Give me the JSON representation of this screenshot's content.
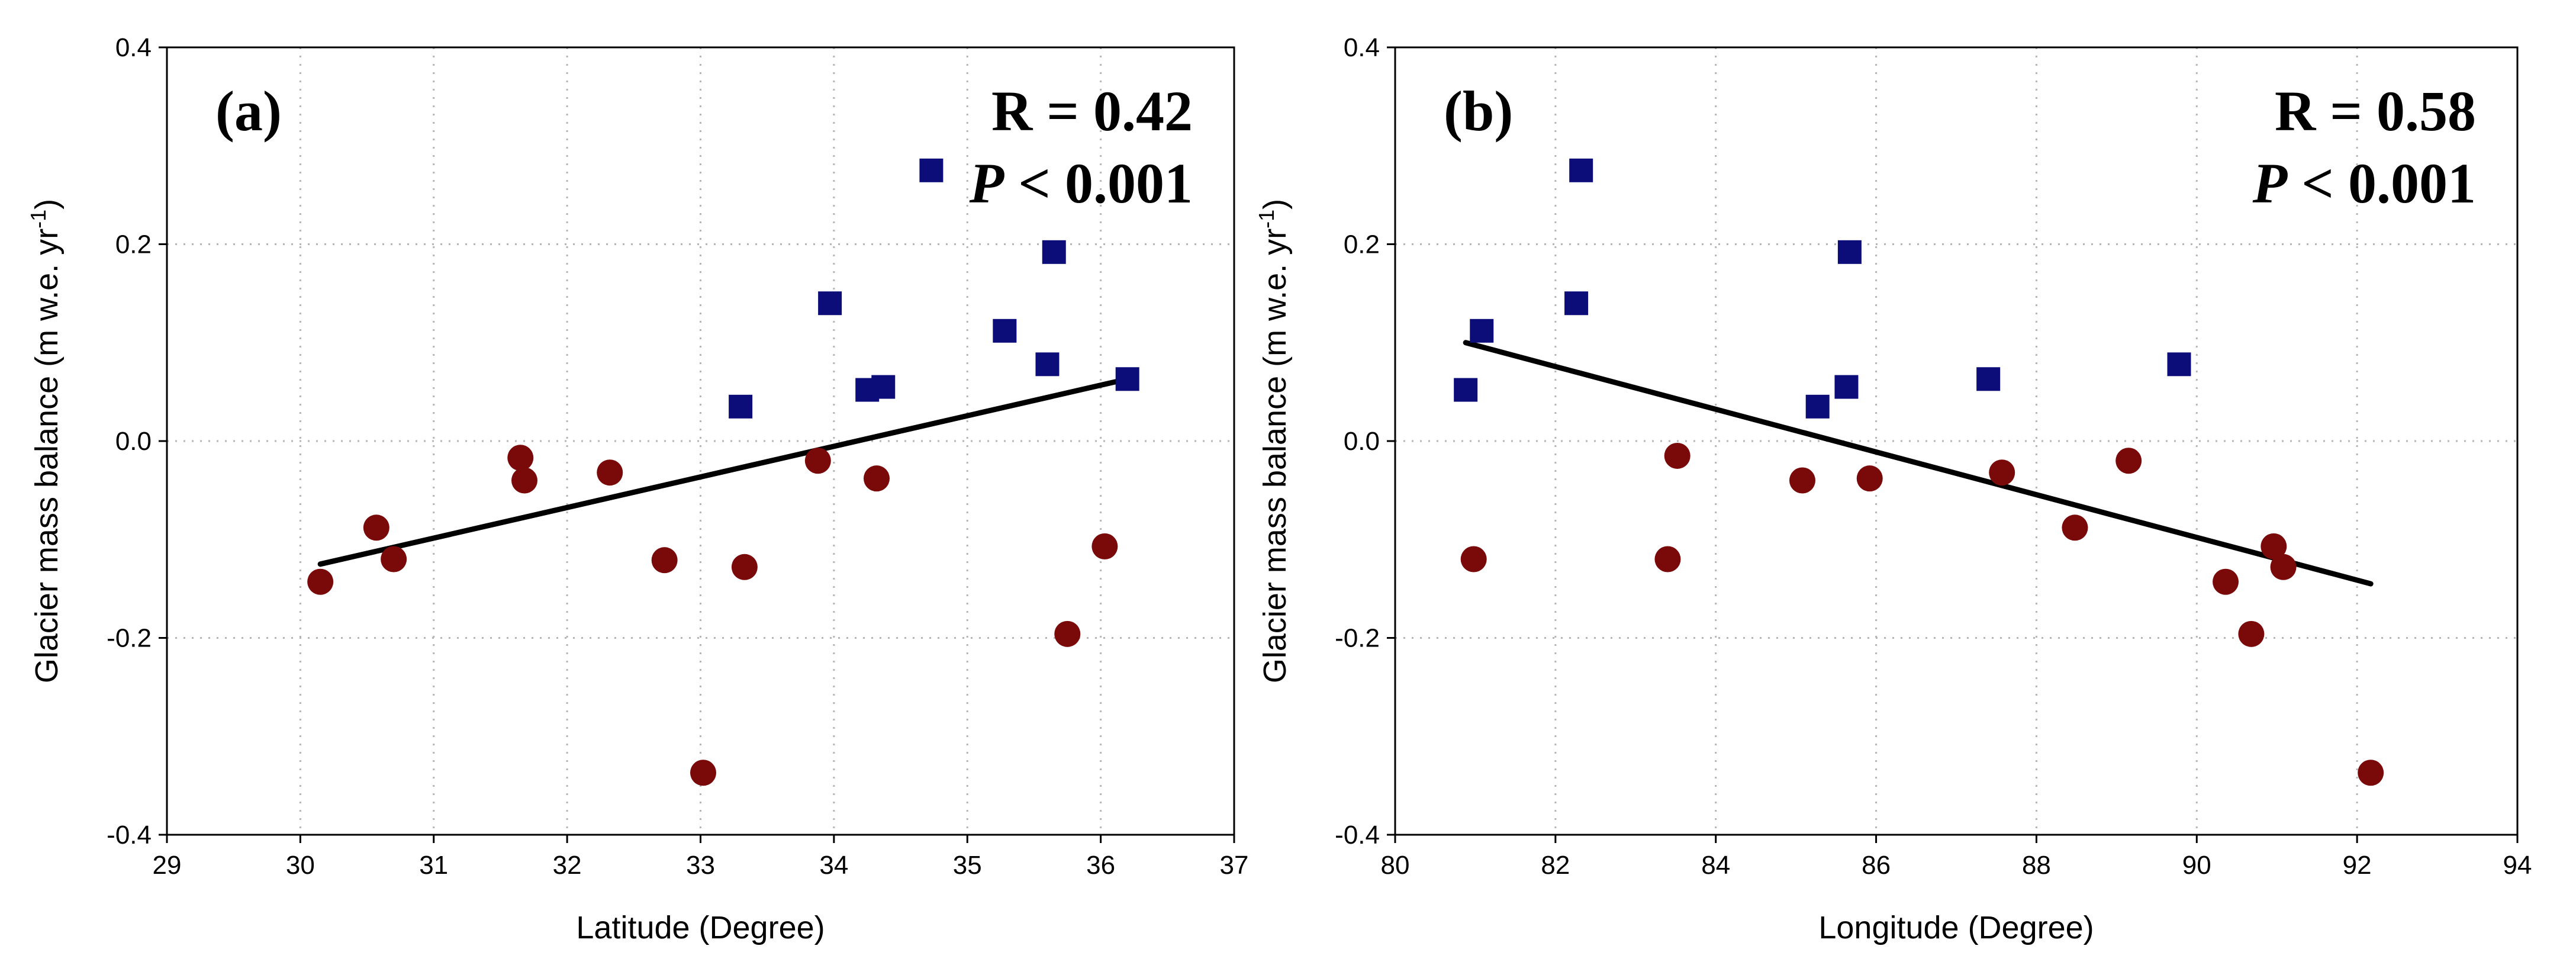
{
  "chart_data": [
    {
      "type": "scatter",
      "panel_label": "(a)",
      "xlabel": "Latitude (Degree)",
      "ylabel_main": "Glacier mass balance (m w.e. yr",
      "ylabel_sup": "-1",
      "ylabel_end": ")",
      "xlim": [
        29,
        37
      ],
      "ylim": [
        -0.4,
        0.4
      ],
      "xticks": [
        29,
        30,
        31,
        32,
        33,
        34,
        35,
        36,
        37
      ],
      "xtick_labels": [
        "29",
        "30",
        "31",
        "32",
        "33",
        "34",
        "35",
        "36",
        "37"
      ],
      "yticks": [
        -0.4,
        -0.2,
        0.0,
        0.2,
        0.4
      ],
      "ytick_labels": [
        "-0.4",
        "-0.2",
        "0.0",
        "0.2",
        "0.4"
      ],
      "grid": true,
      "annotation_r": "R = 0.42",
      "annotation_p_italic": "P",
      "annotation_p_rest": " < 0.001",
      "series": [
        {
          "marker": "square",
          "color": "#0d0d7a",
          "x": [
            33.3,
            33.97,
            34.25,
            34.37,
            34.73,
            35.28,
            35.6,
            35.65,
            36.2
          ],
          "y": [
            0.035,
            0.14,
            0.052,
            0.055,
            0.275,
            0.112,
            0.078,
            0.192,
            0.063
          ]
        },
        {
          "marker": "circle",
          "color": "#7a0a0a",
          "x": [
            30.15,
            30.57,
            30.7,
            31.65,
            31.68,
            32.32,
            32.73,
            33.02,
            33.33,
            33.88,
            34.32,
            35.75,
            36.03
          ],
          "y": [
            -0.143,
            -0.088,
            -0.12,
            -0.017,
            -0.04,
            -0.032,
            -0.121,
            -0.337,
            -0.128,
            -0.02,
            -0.038,
            -0.196,
            -0.107
          ]
        }
      ],
      "trend_line": {
        "x": [
          30.15,
          36.2
        ],
        "y": [
          -0.125,
          0.063
        ],
        "color": "#000000"
      }
    },
    {
      "type": "scatter",
      "panel_label": "(b)",
      "xlabel": "Longitude (Degree)",
      "ylabel_main": "Glacier mass balance (m w.e. yr",
      "ylabel_sup": "-1",
      "ylabel_end": ")",
      "xlim": [
        80,
        94
      ],
      "ylim": [
        -0.4,
        0.4
      ],
      "xticks": [
        80,
        82,
        84,
        86,
        88,
        90,
        92,
        94
      ],
      "xtick_labels": [
        "80",
        "82",
        "84",
        "86",
        "88",
        "90",
        "92",
        "94"
      ],
      "yticks": [
        -0.4,
        -0.2,
        0.0,
        0.2,
        0.4
      ],
      "ytick_labels": [
        "-0.4",
        "-0.2",
        "0.0",
        "0.2",
        "0.4"
      ],
      "grid": true,
      "annotation_r": "R = 0.58",
      "annotation_p_italic": "P",
      "annotation_p_rest": " < 0.001",
      "series": [
        {
          "marker": "square",
          "color": "#0d0d7a",
          "x": [
            80.88,
            81.08,
            82.26,
            82.32,
            85.27,
            85.63,
            85.67,
            87.4,
            89.78
          ],
          "y": [
            0.052,
            0.112,
            0.14,
            0.275,
            0.035,
            0.055,
            0.192,
            0.063,
            0.078
          ]
        },
        {
          "marker": "circle",
          "color": "#7a0a0a",
          "x": [
            80.98,
            83.4,
            83.52,
            85.08,
            85.92,
            87.57,
            88.48,
            89.15,
            90.36,
            90.68,
            90.96,
            91.08,
            92.17
          ],
          "y": [
            -0.12,
            -0.12,
            -0.015,
            -0.04,
            -0.038,
            -0.032,
            -0.088,
            -0.02,
            -0.143,
            -0.196,
            -0.107,
            -0.128,
            -0.337
          ]
        }
      ],
      "trend_line": {
        "x": [
          80.88,
          92.17
        ],
        "y": [
          0.1,
          -0.145
        ],
        "color": "#000000"
      }
    }
  ]
}
